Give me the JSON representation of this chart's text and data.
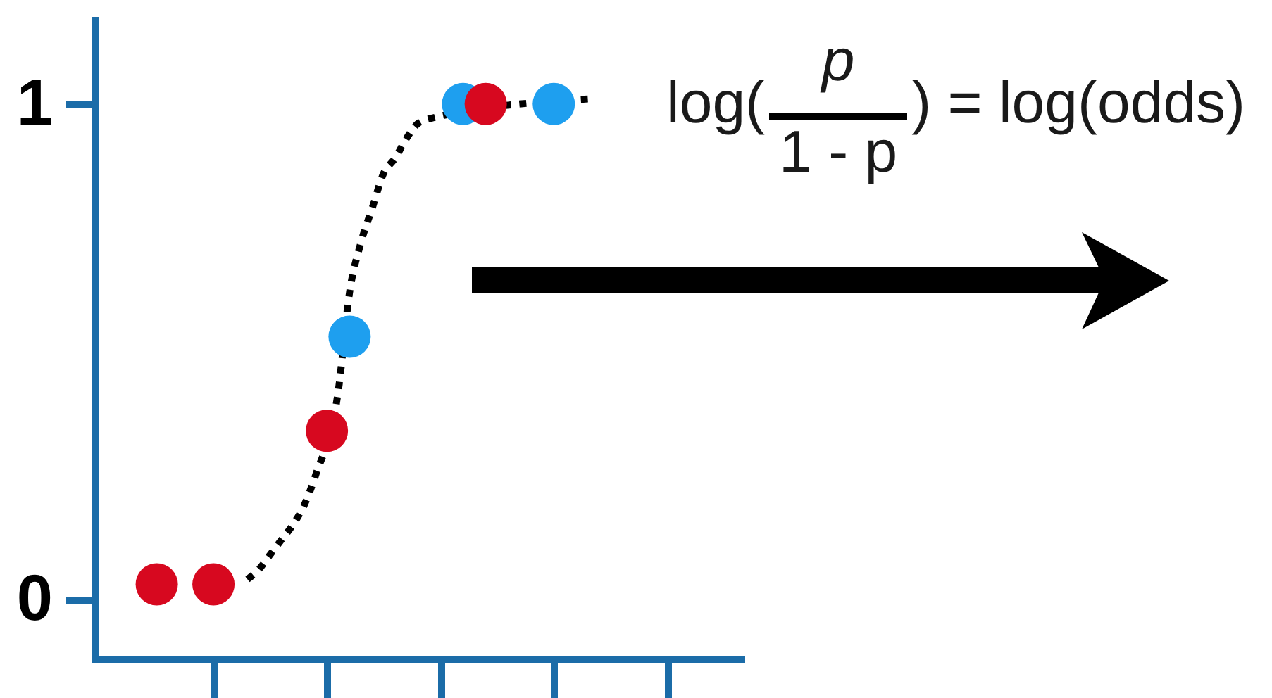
{
  "chart_data": {
    "type": "scatter",
    "categories": [
      null,
      null,
      null,
      null,
      null,
      null,
      null,
      null,
      null,
      null,
      null,
      null,
      null,
      null,
      null,
      null,
      null,
      null,
      null,
      null,
      null,
      null,
      null,
      null,
      null,
      null,
      null,
      null,
      null,
      null,
      null,
      null,
      null,
      null,
      null,
      null,
      null,
      null,
      null,
      null,
      null,
      null,
      null,
      null,
      null,
      null,
      null,
      null,
      null,
      null,
      null,
      null,
      null,
      null,
      null,
      null,
      null
    ],
    "ylim": [
      -0.12,
      1.17
    ],
    "yticks": [
      0,
      1
    ],
    "tick_labels": "y",
    "marker": "circle",
    "line_style": "dotted",
    "series": [
      {
        "type": "line",
        "marker": "none",
        "color": "#000000",
        "values": [
          null,
          null,
          null,
          null,
          null,
          null,
          null,
          null,
          null,
          null,
          null,
          null,
          null,
          0.04,
          0.06,
          0.09,
          0.12,
          0.15,
          0.19,
          0.25,
          null,
          0.42,
          0.62,
          0.72,
          0.79,
          0.86,
          0.89,
          0.93,
          0.96,
          0.97,
          null,
          null,
          null,
          null,
          null,
          null,
          null,
          null,
          null,
          null,
          null,
          null,
          null,
          1.01,
          null,
          null,
          null,
          null,
          null,
          null,
          null,
          null,
          null,
          null,
          null,
          null,
          null
        ]
      },
      {
        "color": "#1e9fef",
        "values": [
          null,
          null,
          null,
          null,
          null,
          null,
          null,
          null,
          null,
          null,
          null,
          null,
          null,
          null,
          null,
          null,
          null,
          null,
          null,
          null,
          null,
          null,
          0.53,
          null,
          null,
          null,
          null,
          null,
          null,
          null,
          null,
          null,
          1.0,
          null,
          null,
          null,
          null,
          null,
          null,
          null,
          1.0,
          null,
          null,
          null,
          null,
          null,
          null,
          null,
          null,
          null,
          null,
          null,
          null,
          null,
          null,
          null,
          null
        ]
      },
      {
        "color": "#d7081f",
        "values": [
          null,
          null,
          null,
          null,
          null,
          0.03,
          null,
          null,
          null,
          null,
          0.03,
          null,
          null,
          null,
          null,
          null,
          null,
          null,
          null,
          null,
          0.34,
          null,
          null,
          null,
          null,
          null,
          null,
          null,
          null,
          null,
          null,
          null,
          null,
          null,
          1.0,
          null,
          null,
          null,
          null,
          null,
          null,
          null,
          null,
          null,
          null,
          null,
          null,
          null,
          null,
          null,
          null,
          null,
          null,
          null,
          null,
          null,
          null
        ]
      }
    ],
    "annotations": [
      "log(",
      "p",
      "1 - p",
      ") = log(odds)"
    ]
  }
}
